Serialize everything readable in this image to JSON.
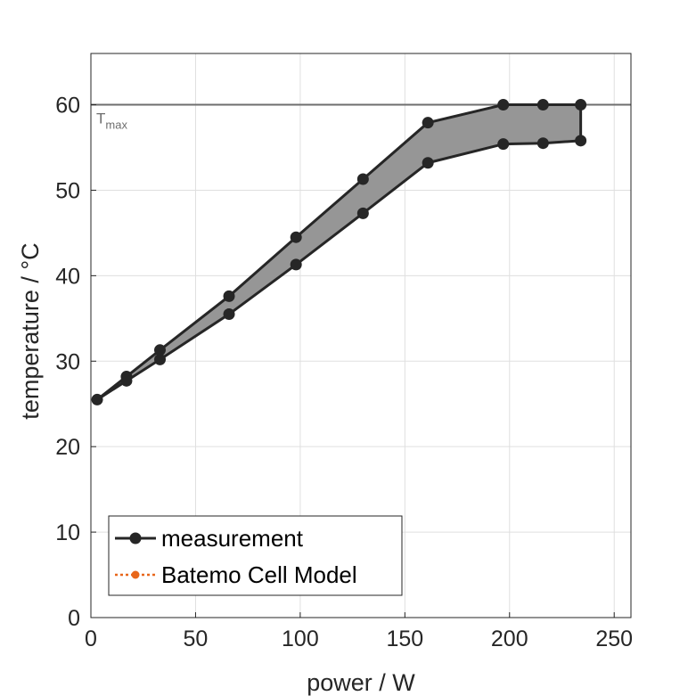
{
  "chart_data": {
    "type": "line",
    "xlabel": "power / W",
    "ylabel": "temperature / °C",
    "xlim": [
      0,
      258
    ],
    "ylim": [
      0,
      66
    ],
    "xticks": [
      0,
      50,
      100,
      150,
      200,
      250
    ],
    "yticks": [
      0,
      10,
      20,
      30,
      40,
      50,
      60
    ],
    "grid": true,
    "legend_position": "bottom-left",
    "series": [
      {
        "name": "measurement",
        "color": "#262626",
        "x": [
          3,
          17,
          33,
          66,
          98,
          130,
          161,
          197,
          216,
          234
        ],
        "y_upper": [
          25.5,
          28.2,
          31.3,
          37.6,
          44.5,
          51.3,
          57.9,
          60.0,
          60.0,
          60.0
        ],
        "y_lower": [
          25.5,
          27.7,
          30.2,
          35.5,
          41.3,
          47.3,
          53.2,
          55.4,
          55.5,
          55.8
        ],
        "band_color": "#969696"
      },
      {
        "name": "Batemo Cell Model",
        "color": "#e8671b",
        "x": [],
        "y": []
      }
    ],
    "reference_line": {
      "y": 60,
      "label": "T",
      "label_sub": "max",
      "color": "#6e6e6e"
    }
  }
}
